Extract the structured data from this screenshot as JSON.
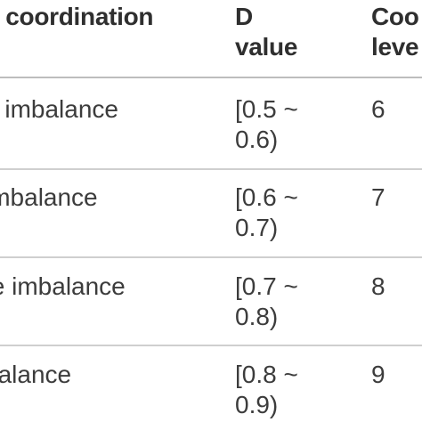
{
  "table": {
    "headers": {
      "type": "g coordination",
      "d_value_line1": "D",
      "d_value_line2": "value",
      "level_line1": "Coo",
      "level_line2": "leve"
    },
    "rows": [
      {
        "type": "e imbalance",
        "range_line1": "[0.5 ~",
        "range_line2": "0.6)",
        "level": "6"
      },
      {
        "type": " imbalance",
        "range_line1": "[0.6 ~",
        "range_line2": "0.7)",
        "level": "7"
      },
      {
        "type": "te imbalance",
        "range_line1": "[0.7 ~",
        "range_line2": "0.8)",
        "level": "8"
      },
      {
        "type": "balance",
        "range_line1": "[0.8 ~",
        "range_line2": "0.9)",
        "level": "9"
      }
    ]
  }
}
